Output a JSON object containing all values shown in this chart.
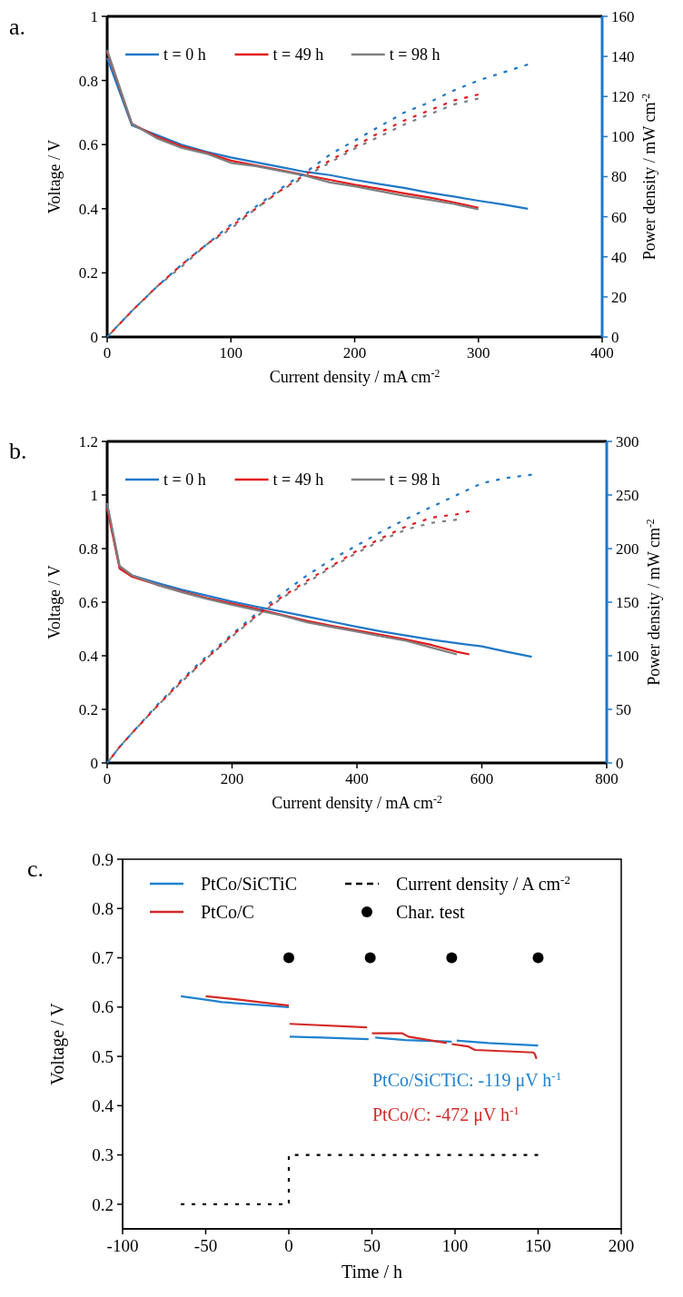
{
  "chart_data": [
    {
      "type": "line",
      "title": "a.",
      "xlabel": "Current density / mA cm$^{-2}$",
      "ylabel": "Voltage / V",
      "y2label": "Power density / mW cm$^{-2}$",
      "xlim": [
        0,
        400
      ],
      "xticks": [
        0,
        100,
        200,
        300,
        400
      ],
      "ylim": [
        0,
        1
      ],
      "yticks": [
        0,
        0.2,
        0.4,
        0.6,
        0.8,
        1
      ],
      "y2lim": [
        0,
        160
      ],
      "y2ticks": [
        0,
        20,
        40,
        60,
        80,
        100,
        120,
        140,
        160
      ],
      "legend": "top",
      "grid": false,
      "series": [
        {
          "name": "t = 0 h",
          "color": "#1f78c8",
          "line_style": "solid",
          "x": [
            0,
            20,
            40,
            60,
            80,
            100,
            120,
            140,
            160,
            180,
            200,
            220,
            240,
            260,
            280,
            300,
            320,
            340
          ],
          "values": [
            0.87,
            0.66,
            0.63,
            0.6,
            0.578,
            0.56,
            0.545,
            0.53,
            0.515,
            0.505,
            0.49,
            0.477,
            0.465,
            0.45,
            0.438,
            0.425,
            0.413,
            0.4
          ]
        },
        {
          "name": "t = 49 h",
          "color": "#e31a1c",
          "line_style": "solid",
          "x": [
            0,
            20,
            40,
            60,
            80,
            100,
            120,
            140,
            160,
            180,
            200,
            220,
            240,
            260,
            280,
            300
          ],
          "values": [
            0.89,
            0.665,
            0.625,
            0.595,
            0.575,
            0.55,
            0.535,
            0.52,
            0.505,
            0.49,
            0.475,
            0.462,
            0.448,
            0.435,
            0.42,
            0.403
          ]
        },
        {
          "name": "t = 98 h",
          "color": "#7f7f7f",
          "line_style": "solid",
          "x": [
            0,
            20,
            40,
            60,
            80,
            100,
            120,
            140,
            160,
            180,
            200,
            220,
            240,
            260,
            280,
            300
          ],
          "values": [
            0.895,
            0.665,
            0.62,
            0.59,
            0.572,
            0.543,
            0.533,
            0.518,
            0.503,
            0.482,
            0.47,
            0.455,
            0.44,
            0.428,
            0.415,
            0.398
          ]
        },
        {
          "color": "#1f78c8",
          "line_style": "dashed",
          "axis": "y2",
          "x": [
            0,
            20,
            40,
            60,
            80,
            100,
            120,
            140,
            160,
            180,
            200,
            220,
            240,
            260,
            280,
            300,
            320,
            340
          ],
          "values": [
            0,
            13,
            25,
            36,
            46,
            56,
            65,
            74,
            82,
            91,
            98,
            105,
            112,
            117,
            123,
            128,
            132,
            136
          ]
        },
        {
          "color": "#e31a1c",
          "line_style": "dashed",
          "axis": "y2",
          "x": [
            0,
            20,
            40,
            60,
            80,
            100,
            120,
            140,
            160,
            180,
            200,
            220,
            240,
            260,
            280,
            300
          ],
          "values": [
            0,
            13,
            25,
            36,
            46,
            55,
            64,
            73,
            81,
            88,
            95,
            102,
            108,
            113,
            118,
            121
          ]
        },
        {
          "color": "#7f7f7f",
          "line_style": "dashed",
          "axis": "y2",
          "x": [
            0,
            20,
            40,
            60,
            80,
            100,
            120,
            140,
            160,
            180,
            200,
            220,
            240,
            260,
            280,
            300
          ],
          "values": [
            0,
            13,
            25,
            35,
            46,
            54,
            64,
            73,
            80,
            87,
            94,
            100,
            106,
            111,
            116,
            119
          ]
        }
      ]
    },
    {
      "type": "line",
      "title": "b.",
      "xlabel": "Current density / mA cm$^{-2}$",
      "ylabel": "Voltage / V",
      "y2label": "Power density / mW cm$^{-2}$",
      "xlim": [
        0,
        800
      ],
      "xticks": [
        0,
        200,
        400,
        600,
        800
      ],
      "ylim": [
        0,
        1.2
      ],
      "yticks": [
        0,
        0.2,
        0.4,
        0.6,
        0.8,
        1,
        1.2
      ],
      "y2lim": [
        0,
        300
      ],
      "y2ticks": [
        0,
        50,
        100,
        150,
        200,
        250,
        300
      ],
      "legend": "top",
      "grid": false,
      "series": [
        {
          "name": "t = 0 h",
          "color": "#1f78c8",
          "line_style": "solid",
          "x": [
            0,
            20,
            40,
            80,
            120,
            160,
            200,
            240,
            280,
            320,
            360,
            400,
            440,
            480,
            520,
            560,
            600,
            640,
            680
          ],
          "values": [
            0.96,
            0.73,
            0.7,
            0.672,
            0.646,
            0.624,
            0.602,
            0.583,
            0.565,
            0.546,
            0.527,
            0.508,
            0.49,
            0.475,
            0.46,
            0.447,
            0.435,
            0.415,
            0.396
          ]
        },
        {
          "name": "t = 49 h",
          "color": "#e31a1c",
          "line_style": "solid",
          "x": [
            0,
            20,
            40,
            80,
            120,
            160,
            200,
            240,
            280,
            320,
            360,
            400,
            440,
            480,
            520,
            560,
            580
          ],
          "values": [
            0.95,
            0.725,
            0.695,
            0.665,
            0.64,
            0.615,
            0.595,
            0.575,
            0.552,
            0.53,
            0.512,
            0.495,
            0.478,
            0.46,
            0.44,
            0.415,
            0.405
          ]
        },
        {
          "name": "t = 98 h",
          "color": "#7f7f7f",
          "line_style": "solid",
          "x": [
            0,
            20,
            40,
            80,
            120,
            160,
            200,
            240,
            280,
            320,
            360,
            400,
            440,
            480,
            520,
            560
          ],
          "values": [
            0.97,
            0.735,
            0.7,
            0.665,
            0.637,
            0.612,
            0.59,
            0.57,
            0.55,
            0.525,
            0.507,
            0.49,
            0.472,
            0.455,
            0.43,
            0.405
          ]
        },
        {
          "color": "#1f78c8",
          "line_style": "dashed",
          "axis": "y2",
          "x": [
            0,
            20,
            40,
            80,
            120,
            160,
            200,
            240,
            280,
            320,
            360,
            400,
            440,
            480,
            520,
            560,
            600,
            640,
            680
          ],
          "values": [
            0,
            15,
            28,
            54,
            78,
            100,
            120,
            140,
            158,
            175,
            190,
            203,
            216,
            228,
            239,
            250,
            261,
            266,
            269
          ]
        },
        {
          "color": "#e31a1c",
          "line_style": "dashed",
          "axis": "y2",
          "x": [
            0,
            20,
            40,
            80,
            120,
            160,
            200,
            240,
            280,
            320,
            360,
            400,
            440,
            480,
            520,
            560,
            580
          ],
          "values": [
            0,
            15,
            28,
            53,
            77,
            98,
            119,
            138,
            155,
            170,
            184,
            198,
            210,
            221,
            229,
            232,
            235
          ]
        },
        {
          "color": "#7f7f7f",
          "line_style": "dashed",
          "axis": "y2",
          "x": [
            0,
            20,
            40,
            80,
            120,
            160,
            200,
            240,
            280,
            320,
            360,
            400,
            440,
            480,
            520,
            560
          ],
          "values": [
            0,
            15,
            28,
            53,
            76,
            98,
            118,
            137,
            154,
            168,
            183,
            196,
            208,
            218,
            224,
            227
          ]
        }
      ]
    },
    {
      "type": "line",
      "title": "c.",
      "xlabel": "Time / h",
      "ylabel": "Voltage / V",
      "xlim": [
        -100,
        200
      ],
      "xticks": [
        -100,
        -50,
        0,
        50,
        100,
        150,
        200
      ],
      "ylim": [
        0.15,
        0.9
      ],
      "yticks": [
        0.2,
        0.3,
        0.4,
        0.5,
        0.6,
        0.7,
        0.8,
        0.9
      ],
      "legend": "top left",
      "grid": false,
      "annotations": [
        "PtCo/SiCTiC: -119 μV h$^{-1}$",
        "PtCo/C: -472 μV h$^{-1}$"
      ],
      "series": [
        {
          "name": "PtCo/SiCTiC",
          "color": "#1f82cf",
          "line_style": "solid",
          "x": [
            -65,
            -50,
            -40,
            -20,
            0
          ],
          "values": [
            0.622,
            0.615,
            0.61,
            0.605,
            0.6
          ]
        },
        {
          "name": "PtCo/C",
          "color": "#d42a26",
          "line_style": "solid",
          "x": [
            -50,
            -30,
            0
          ],
          "values": [
            0.622,
            0.615,
            0.603
          ]
        },
        {
          "name": "Current density / A cm$^{-2}$",
          "color": "#000000",
          "line_style": "dashed",
          "x": [
            -65,
            0,
            0,
            150
          ],
          "values": [
            0.2,
            0.2,
            0.3,
            0.3
          ]
        },
        {
          "name": "Char. test",
          "type": "scatter",
          "marker": "circle",
          "color": "#000000",
          "x": [
            0,
            49,
            98,
            150
          ],
          "values": [
            0.7,
            0.7,
            0.7,
            0.7
          ]
        },
        {
          "color": "#1f82cf",
          "line_style": "solid",
          "x": [
            0.5,
            20,
            48
          ],
          "values": [
            0.54,
            0.538,
            0.535
          ]
        },
        {
          "color": "#1f82cf",
          "line_style": "solid",
          "x": [
            52,
            70,
            98
          ],
          "values": [
            0.538,
            0.533,
            0.53
          ]
        },
        {
          "color": "#1f82cf",
          "line_style": "solid",
          "x": [
            101,
            120,
            150
          ],
          "values": [
            0.532,
            0.527,
            0.522
          ]
        },
        {
          "color": "#d42a26",
          "line_style": "solid",
          "x": [
            0.5,
            47
          ],
          "values": [
            0.566,
            0.559
          ]
        },
        {
          "color": "#d42a26",
          "line_style": "solid",
          "x": [
            50,
            68,
            72,
            95
          ],
          "values": [
            0.547,
            0.547,
            0.54,
            0.527
          ]
        },
        {
          "color": "#d42a26",
          "line_style": "solid",
          "x": [
            98,
            108,
            112,
            147,
            148,
            149
          ],
          "values": [
            0.525,
            0.52,
            0.513,
            0.508,
            0.505,
            0.495
          ]
        }
      ]
    }
  ]
}
